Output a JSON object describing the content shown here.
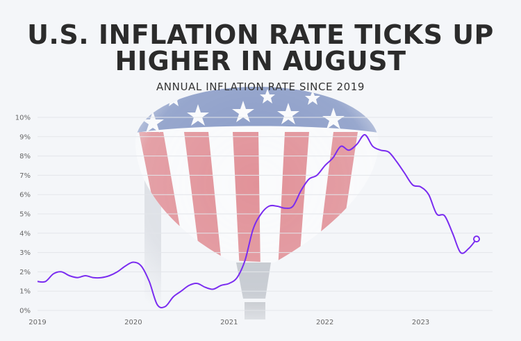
{
  "header": {
    "title_line1": "U.S. INFLATION RATE TICKS UP",
    "title_line2": "HIGHER IN AUGUST",
    "subtitle": "ANNUAL INFLATION RATE SINCE 2019"
  },
  "colors": {
    "line": "#7a2cf0",
    "grid": "#e3e5ea",
    "balloon_red": "#d2404a",
    "balloon_blue": "#2f4e9c"
  },
  "chart_data": {
    "type": "line",
    "title": "U.S. INFLATION RATE TICKS UP HIGHER IN AUGUST",
    "subtitle": "ANNUAL INFLATION RATE SINCE 2019",
    "xlabel": "",
    "ylabel": "",
    "ylim": [
      0,
      10
    ],
    "xlim": [
      2019.0,
      2023.75
    ],
    "grid": true,
    "legend": "none",
    "x_ticks": [
      "2019",
      "2020",
      "2021",
      "2022",
      "2023"
    ],
    "y_ticks": [
      "0%",
      "1%",
      "2%",
      "3%",
      "4%",
      "5%",
      "6%",
      "7%",
      "8%",
      "9%",
      "10%"
    ],
    "series": [
      {
        "name": "",
        "dates": [
          "2019-01",
          "2019-02",
          "2019-03",
          "2019-04",
          "2019-05",
          "2019-06",
          "2019-07",
          "2019-08",
          "2019-09",
          "2019-10",
          "2019-11",
          "2019-12",
          "2020-01",
          "2020-02",
          "2020-03",
          "2020-04",
          "2020-05",
          "2020-06",
          "2020-07",
          "2020-08",
          "2020-09",
          "2020-10",
          "2020-11",
          "2020-12",
          "2021-01",
          "2021-02",
          "2021-03",
          "2021-04",
          "2021-05",
          "2021-06",
          "2021-07",
          "2021-08",
          "2021-09",
          "2021-10",
          "2021-11",
          "2021-12",
          "2022-01",
          "2022-02",
          "2022-03",
          "2022-04",
          "2022-05",
          "2022-06",
          "2022-07",
          "2022-08",
          "2022-09",
          "2022-10",
          "2022-11",
          "2022-12",
          "2023-01",
          "2023-02",
          "2023-03",
          "2023-04",
          "2023-05",
          "2023-06",
          "2023-07",
          "2023-08"
        ],
        "values": [
          1.5,
          1.5,
          1.9,
          2.0,
          1.8,
          1.7,
          1.8,
          1.7,
          1.7,
          1.8,
          2.0,
          2.3,
          2.5,
          2.3,
          1.5,
          0.3,
          0.2,
          0.7,
          1.0,
          1.3,
          1.4,
          1.2,
          1.1,
          1.3,
          1.4,
          1.7,
          2.6,
          4.2,
          5.0,
          5.4,
          5.4,
          5.3,
          5.4,
          6.2,
          6.8,
          7.0,
          7.5,
          7.9,
          8.5,
          8.3,
          8.6,
          9.1,
          8.5,
          8.3,
          8.2,
          7.7,
          7.1,
          6.5,
          6.4,
          6.0,
          5.0,
          4.9,
          4.0,
          3.0,
          3.2,
          3.7
        ]
      }
    ]
  }
}
